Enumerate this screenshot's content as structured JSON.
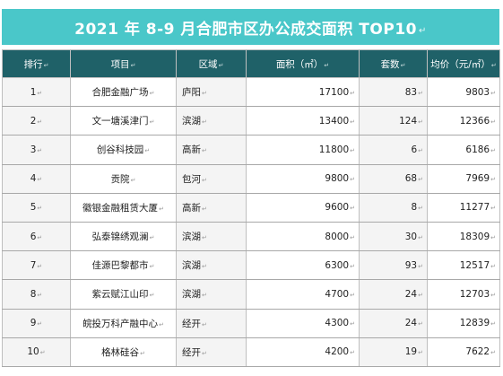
{
  "title": "2021 年 8-9 月合肥市区办公成交面积 TOP10",
  "columns": [
    "排行",
    "项目",
    "区域",
    "面积（㎡）",
    "套数",
    "均价（元/㎡）"
  ],
  "rows": [
    {
      "rank": "1",
      "project": "合肥金融广场",
      "district": "庐阳",
      "area": "17100",
      "units": "83",
      "price": "9803"
    },
    {
      "rank": "2",
      "project": "文一塘溪津门",
      "district": "滨湖",
      "area": "13400",
      "units": "124",
      "price": "12366"
    },
    {
      "rank": "3",
      "project": "创谷科技园",
      "district": "高新",
      "area": "11800",
      "units": "6",
      "price": "6186"
    },
    {
      "rank": "4",
      "project": "贡院",
      "district": "包河",
      "area": "9800",
      "units": "68",
      "price": "7969"
    },
    {
      "rank": "5",
      "project": "徽银金融租赁大厦",
      "district": "高新",
      "area": "9600",
      "units": "8",
      "price": "11277"
    },
    {
      "rank": "6",
      "project": "弘泰锦绣观澜",
      "district": "滨湖",
      "area": "8000",
      "units": "30",
      "price": "18309"
    },
    {
      "rank": "7",
      "project": "佳源巴黎都市",
      "district": "滨湖",
      "area": "6300",
      "units": "93",
      "price": "12517"
    },
    {
      "rank": "8",
      "project": "紫云赋江山印",
      "district": "滨湖",
      "area": "4700",
      "units": "24",
      "price": "12703"
    },
    {
      "rank": "9",
      "project": "皖投万科产融中心",
      "district": "经开",
      "area": "4300",
      "units": "24",
      "price": "12839"
    },
    {
      "rank": "10",
      "project": "格林硅谷",
      "district": "经开",
      "area": "4200",
      "units": "19",
      "price": "7622"
    }
  ]
}
